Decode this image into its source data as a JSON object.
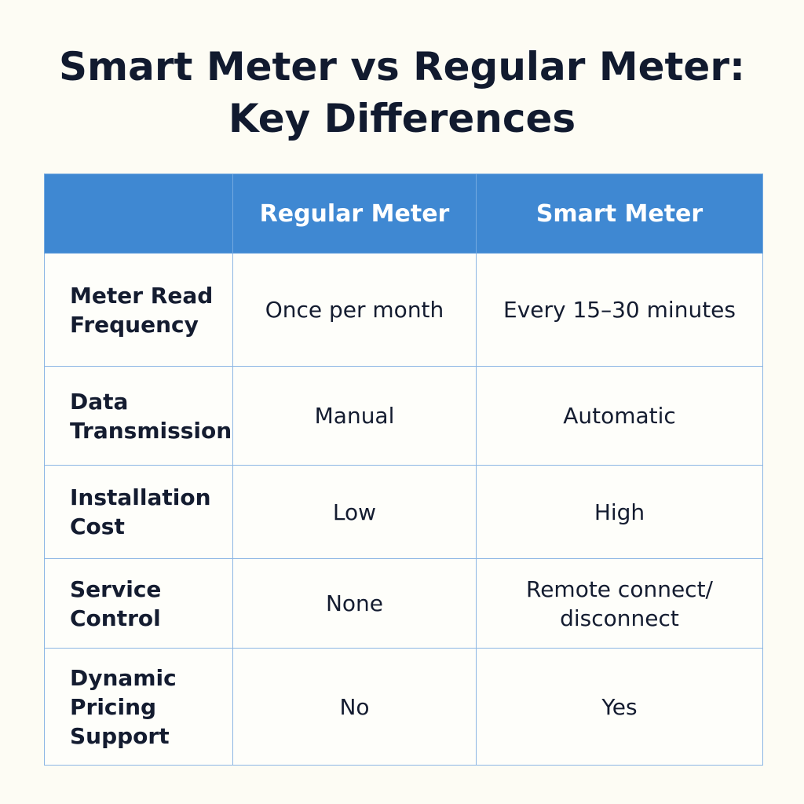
{
  "title": {
    "line1": "Smart Meter vs Regular Meter:",
    "line2": "Key Differences"
  },
  "table": {
    "headers": [
      "",
      "Regular Meter",
      "Smart Meter"
    ],
    "rows": [
      {
        "label_lines": [
          "Meter Read",
          "Frequency"
        ],
        "regular_lines": [
          "Once per month"
        ],
        "smart_lines": [
          "Every 15–30 minutes"
        ]
      },
      {
        "label_lines": [
          "Data",
          "Transmission"
        ],
        "regular_lines": [
          "Manual"
        ],
        "smart_lines": [
          "Automatic"
        ]
      },
      {
        "label_lines": [
          "Installation",
          "Cost"
        ],
        "regular_lines": [
          "Low"
        ],
        "smart_lines": [
          "High"
        ]
      },
      {
        "label_lines": [
          "Service",
          "Control"
        ],
        "regular_lines": [
          "None"
        ],
        "smart_lines": [
          "Remote connect/",
          "disconnect"
        ]
      },
      {
        "label_lines": [
          "Dynamic",
          "Pricing",
          "Support"
        ],
        "regular_lines": [
          "No"
        ],
        "smart_lines": [
          "Yes"
        ]
      }
    ]
  }
}
